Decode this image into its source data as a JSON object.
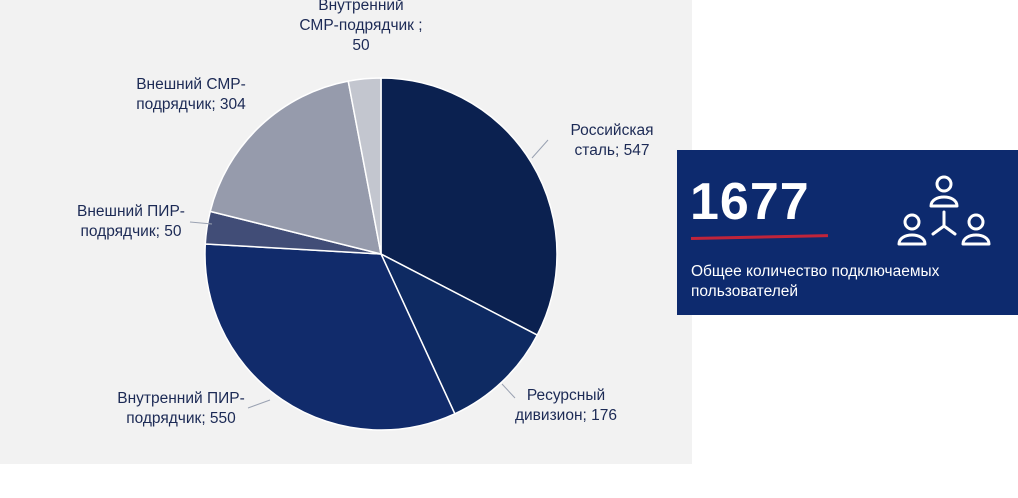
{
  "chart_data": {
    "type": "pie",
    "title": "",
    "start_angle_deg": 0,
    "direction": "clockwise",
    "slices": [
      {
        "label_lines": [
          "Российская",
          "сталь; 547"
        ],
        "value": 547,
        "color": "#0b2150"
      },
      {
        "label_lines": [
          "Ресурсный",
          "дивизион; 176"
        ],
        "value": 176,
        "color": "#0e2a62"
      },
      {
        "label_lines": [
          "Внутренний ПИР-",
          "подрядчик; 550"
        ],
        "value": 550,
        "color": "#112b6b"
      },
      {
        "label_lines": [
          "Внешний ПИР-",
          "подрядчик; 50"
        ],
        "value": 50,
        "color": "#414d77"
      },
      {
        "label_lines": [
          "Внешний СМР-",
          "подрядчик; 304"
        ],
        "value": 304,
        "color": "#969bac"
      },
      {
        "label_lines": [
          "Внутренний",
          "СМР-подрядчик ;",
          "50"
        ],
        "value": 50,
        "color": "#c3c6cf"
      }
    ]
  },
  "stat_card": {
    "value": "1677",
    "caption": "Общее количество подключаемых пользователей",
    "icon": "users-network-icon",
    "background": "#0d2a6e",
    "accent": "#c0243a"
  }
}
